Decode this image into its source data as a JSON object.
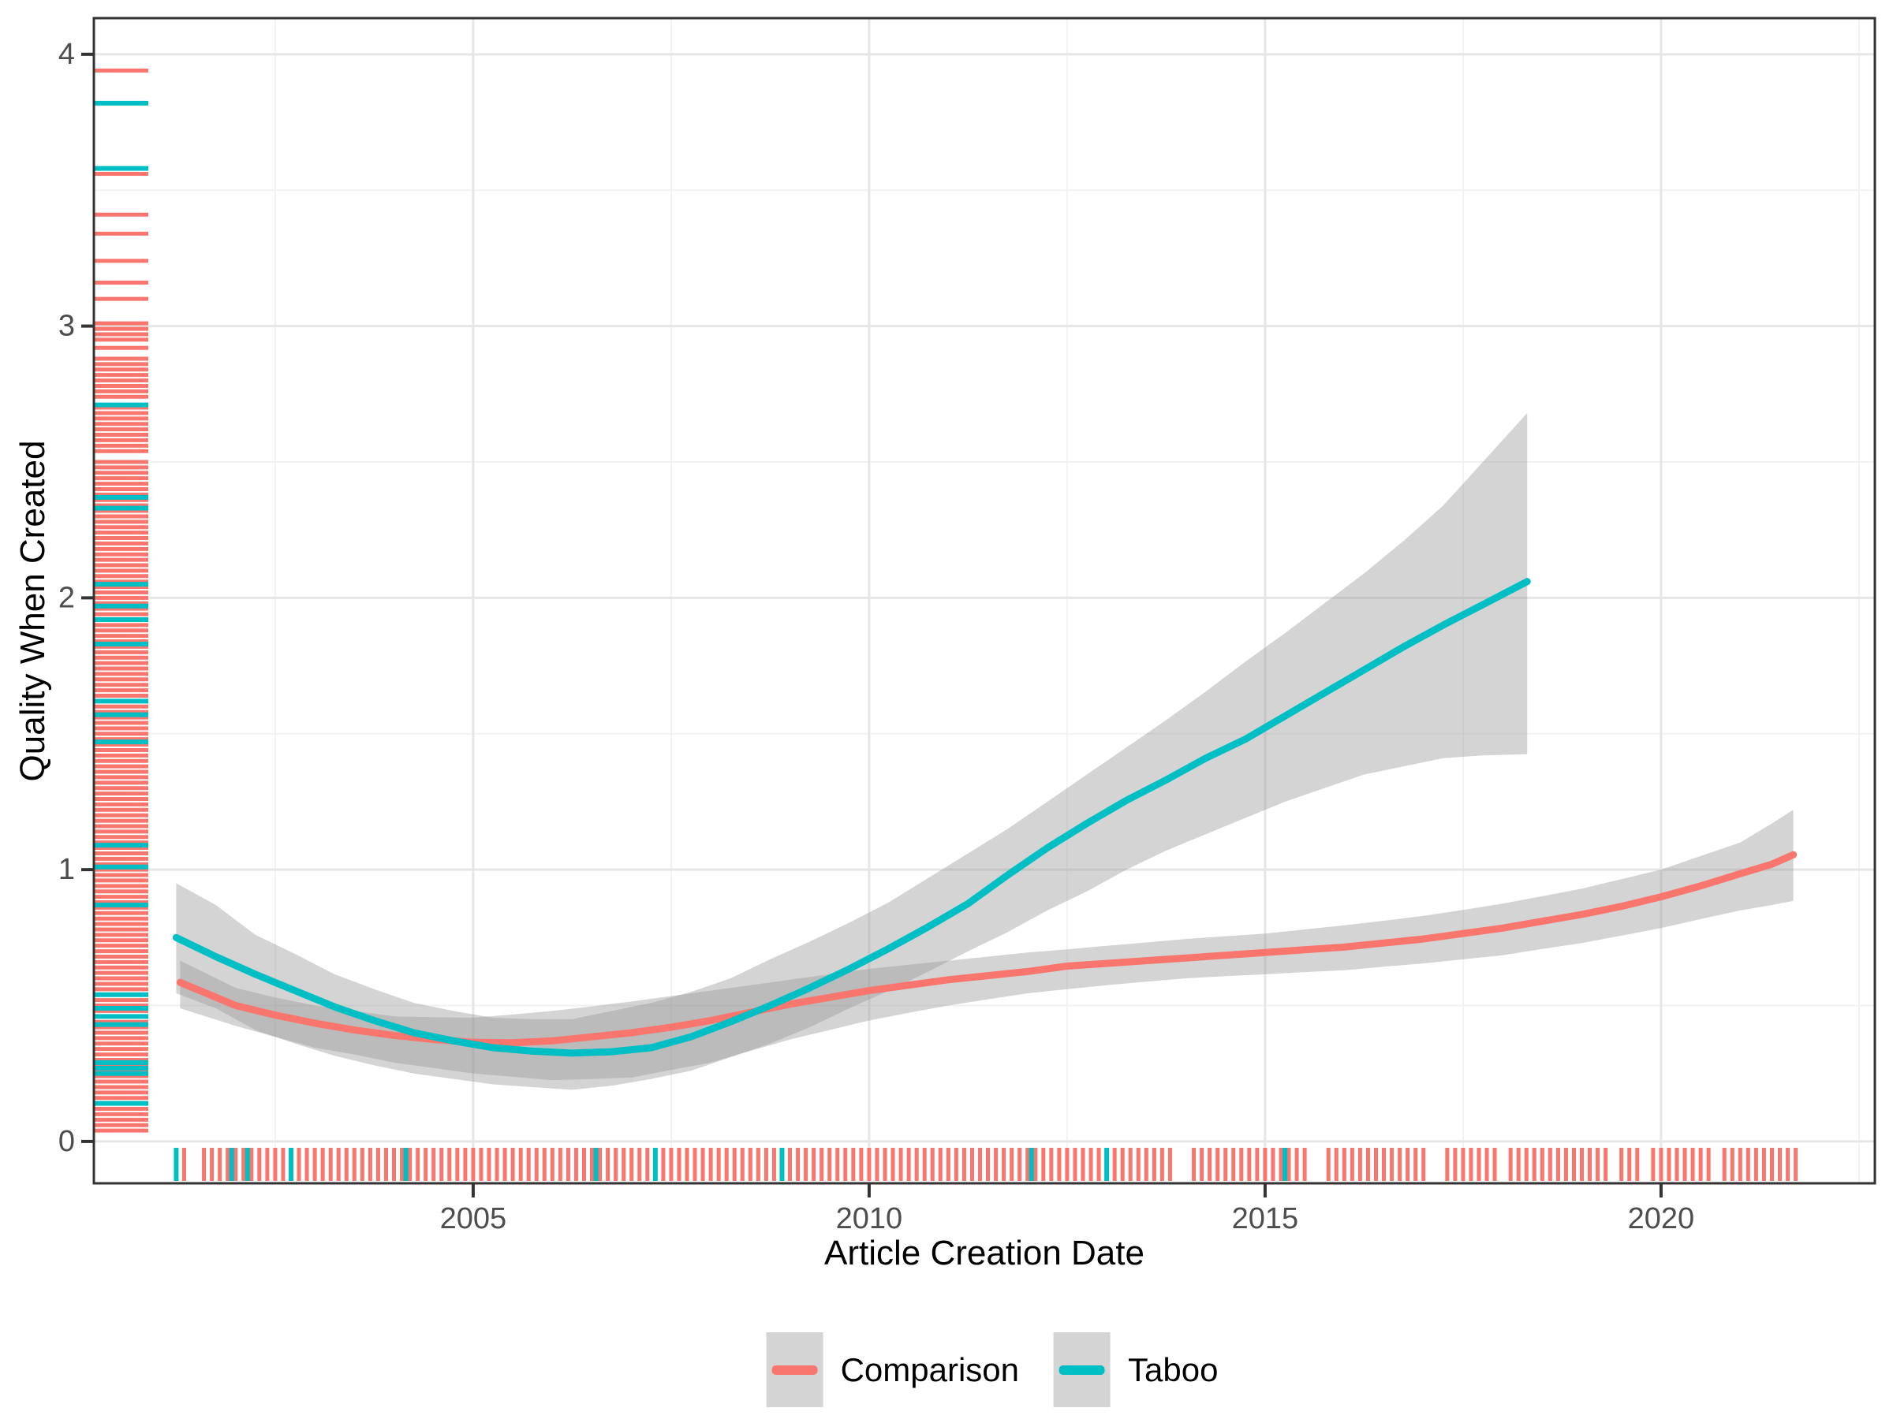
{
  "chart_data": {
    "type": "line",
    "title": "",
    "xlabel": "Article Creation Date",
    "ylabel": "Quality When Created",
    "x_range": [
      2000.21,
      2022.7
    ],
    "y_range": [
      -0.154,
      4.133
    ],
    "x_ticks": [
      2005,
      2010,
      2015,
      2020
    ],
    "x_minor_gridlines": [
      2002.5,
      2007.5,
      2012.5,
      2017.5,
      2022.5
    ],
    "y_ticks": [
      0,
      1,
      2,
      3,
      4
    ],
    "y_minor_gridlines": [
      0.5,
      1.5,
      2.5,
      3.5
    ],
    "grid": "major+minor",
    "legend_position": "bottom-center",
    "ribbon_color": "#999999",
    "ribbon_opacity": 0.42,
    "colors": {
      "comparison": "#F8766D",
      "taboo": "#00BFC4",
      "axis_text": "#4D4D4D",
      "axis_title": "#000000",
      "panel_border": "#333333",
      "grid_major": "#E6E6E6",
      "grid_minor": "#F2F2F2",
      "legend_key_bg": "#D4D4D4"
    },
    "series": [
      {
        "name": "Comparison",
        "color": "#F8766D",
        "x": [
          2001.3,
          2002,
          2002.5,
          2003,
          2003.5,
          2004,
          2004.5,
          2005,
          2005.5,
          2006,
          2006.5,
          2007,
          2007.5,
          2008,
          2008.5,
          2009,
          2009.5,
          2010,
          2010.5,
          2011,
          2011.5,
          2012,
          2012.5,
          2013,
          2013.5,
          2014,
          2014.5,
          2015,
          2015.5,
          2016,
          2016.5,
          2017,
          2017.5,
          2018,
          2018.5,
          2019,
          2019.5,
          2020,
          2020.5,
          2021,
          2021.4,
          2021.67
        ],
        "y": [
          0.585,
          0.5,
          0.465,
          0.435,
          0.41,
          0.39,
          0.375,
          0.365,
          0.363,
          0.37,
          0.385,
          0.4,
          0.42,
          0.445,
          0.475,
          0.505,
          0.53,
          0.555,
          0.575,
          0.595,
          0.61,
          0.625,
          0.645,
          0.655,
          0.665,
          0.675,
          0.685,
          0.695,
          0.705,
          0.715,
          0.73,
          0.745,
          0.765,
          0.785,
          0.81,
          0.835,
          0.865,
          0.9,
          0.94,
          0.985,
          1.02,
          1.055
        ],
        "ribbon_low": [
          0.49,
          0.425,
          0.385,
          0.345,
          0.32,
          0.29,
          0.27,
          0.25,
          0.238,
          0.225,
          0.23,
          0.235,
          0.263,
          0.29,
          0.333,
          0.375,
          0.41,
          0.445,
          0.473,
          0.5,
          0.523,
          0.545,
          0.56,
          0.575,
          0.588,
          0.6,
          0.608,
          0.615,
          0.623,
          0.63,
          0.643,
          0.655,
          0.67,
          0.685,
          0.708,
          0.73,
          0.757,
          0.785,
          0.818,
          0.85,
          0.87,
          0.885
        ],
        "ribbon_high": [
          0.665,
          0.565,
          0.53,
          0.5,
          0.48,
          0.46,
          0.457,
          0.455,
          0.467,
          0.48,
          0.497,
          0.515,
          0.535,
          0.555,
          0.575,
          0.595,
          0.615,
          0.635,
          0.65,
          0.665,
          0.68,
          0.695,
          0.707,
          0.72,
          0.732,
          0.745,
          0.755,
          0.765,
          0.78,
          0.795,
          0.812,
          0.83,
          0.852,
          0.875,
          0.902,
          0.93,
          0.965,
          1.0,
          1.05,
          1.1,
          1.17,
          1.22
        ],
        "rug_x": [
          2001.35,
          2001.6,
          2001.7,
          2001.8,
          2001.9,
          2002.0,
          2002.1,
          2002.2,
          2002.3,
          2002.4,
          2002.5,
          2002.6,
          2002.7,
          2002.8,
          2002.9,
          2003.0,
          2003.1,
          2003.2,
          2003.3,
          2003.4,
          2003.5,
          2003.6,
          2003.7,
          2003.8,
          2003.9,
          2004.0,
          2004.1,
          2004.2,
          2004.3,
          2004.4,
          2004.5,
          2004.6,
          2004.7,
          2004.8,
          2004.9,
          2005.0,
          2005.1,
          2005.2,
          2005.3,
          2005.4,
          2005.5,
          2005.6,
          2005.7,
          2005.8,
          2005.9,
          2006.0,
          2006.1,
          2006.2,
          2006.3,
          2006.4,
          2006.5,
          2006.6,
          2006.7,
          2006.8,
          2006.9,
          2007.0,
          2007.1,
          2007.2,
          2007.3,
          2007.4,
          2007.5,
          2007.6,
          2007.7,
          2007.8,
          2007.9,
          2008.0,
          2008.1,
          2008.2,
          2008.3,
          2008.4,
          2008.5,
          2008.6,
          2008.7,
          2008.8,
          2008.9,
          2009.0,
          2009.1,
          2009.2,
          2009.3,
          2009.4,
          2009.5,
          2009.6,
          2009.7,
          2009.8,
          2009.9,
          2010.0,
          2010.1,
          2010.2,
          2010.3,
          2010.4,
          2010.5,
          2010.6,
          2010.7,
          2010.8,
          2010.9,
          2011.0,
          2011.1,
          2011.2,
          2011.3,
          2011.4,
          2011.5,
          2011.6,
          2011.7,
          2011.8,
          2011.9,
          2012.0,
          2012.1,
          2012.2,
          2012.3,
          2012.4,
          2012.5,
          2012.6,
          2012.7,
          2012.8,
          2012.9,
          2013.0,
          2013.1,
          2013.2,
          2013.3,
          2013.4,
          2013.5,
          2013.6,
          2013.7,
          2013.8,
          2014.1,
          2014.2,
          2014.3,
          2014.4,
          2014.5,
          2014.6,
          2014.7,
          2014.8,
          2014.9,
          2015.0,
          2015.1,
          2015.2,
          2015.3,
          2015.4,
          2015.5,
          2015.8,
          2015.9,
          2016.0,
          2016.1,
          2016.2,
          2016.3,
          2016.4,
          2016.5,
          2016.6,
          2016.7,
          2016.8,
          2016.9,
          2017.0,
          2017.3,
          2017.4,
          2017.5,
          2017.6,
          2017.7,
          2017.8,
          2017.9,
          2018.1,
          2018.2,
          2018.3,
          2018.4,
          2018.5,
          2018.6,
          2018.7,
          2018.8,
          2018.9,
          2019.0,
          2019.1,
          2019.2,
          2019.3,
          2019.5,
          2019.6,
          2019.7,
          2019.9,
          2020.0,
          2020.1,
          2020.2,
          2020.3,
          2020.4,
          2020.5,
          2020.6,
          2020.8,
          2020.9,
          2021.0,
          2021.1,
          2021.2,
          2021.3,
          2021.4,
          2021.5,
          2021.6,
          2021.7
        ],
        "rug_y": [
          3.94,
          3.56,
          3.41,
          3.34,
          3.24,
          3.16,
          3.1,
          3.01,
          2.99,
          2.97,
          2.95,
          2.92,
          2.88,
          2.86,
          2.84,
          2.82,
          2.8,
          2.78,
          2.76,
          2.74,
          2.7,
          2.68,
          2.66,
          2.64,
          2.62,
          2.6,
          2.58,
          2.56,
          2.54,
          2.5,
          2.48,
          2.46,
          2.44,
          2.42,
          2.4,
          2.38,
          2.36,
          2.34,
          2.32,
          2.3,
          2.28,
          2.26,
          2.24,
          2.22,
          2.2,
          2.18,
          2.16,
          2.14,
          2.12,
          2.1,
          2.08,
          2.06,
          2.04,
          2.02,
          2.0,
          1.98,
          1.96,
          1.94,
          1.92,
          1.9,
          1.88,
          1.86,
          1.84,
          1.82,
          1.8,
          1.78,
          1.76,
          1.74,
          1.72,
          1.7,
          1.68,
          1.66,
          1.64,
          1.62,
          1.6,
          1.58,
          1.56,
          1.54,
          1.52,
          1.5,
          1.48,
          1.46,
          1.44,
          1.42,
          1.4,
          1.38,
          1.36,
          1.34,
          1.32,
          1.3,
          1.28,
          1.26,
          1.24,
          1.22,
          1.2,
          1.18,
          1.16,
          1.14,
          1.12,
          1.1,
          1.08,
          1.06,
          1.04,
          1.02,
          1.0,
          0.98,
          0.96,
          0.94,
          0.92,
          0.9,
          0.88,
          0.86,
          0.84,
          0.82,
          0.8,
          0.78,
          0.76,
          0.74,
          0.72,
          0.7,
          0.68,
          0.66,
          0.64,
          0.62,
          0.6,
          0.58,
          0.56,
          0.54,
          0.52,
          0.5,
          0.48,
          0.46,
          0.44,
          0.42,
          0.4,
          0.38,
          0.36,
          0.34,
          0.32,
          0.3,
          0.28,
          0.26,
          0.24,
          0.22,
          0.2,
          0.18,
          0.16,
          0.14,
          0.12,
          0.1,
          0.08,
          0.06,
          0.04
        ]
      },
      {
        "name": "Taboo",
        "color": "#00BFC4",
        "x": [
          2001.25,
          2001.75,
          2002.25,
          2002.75,
          2003.25,
          2003.75,
          2004.25,
          2004.75,
          2005.25,
          2005.75,
          2006.25,
          2006.75,
          2007.25,
          2007.75,
          2008.25,
          2008.75,
          2009.25,
          2009.75,
          2010.25,
          2010.75,
          2011.25,
          2011.75,
          2012.25,
          2012.75,
          2013.25,
          2013.75,
          2014.25,
          2014.75,
          2015.25,
          2015.75,
          2016.25,
          2016.75,
          2017.25,
          2017.75,
          2018.31
        ],
        "y": [
          0.75,
          0.68,
          0.615,
          0.555,
          0.495,
          0.445,
          0.4,
          0.37,
          0.345,
          0.332,
          0.325,
          0.33,
          0.345,
          0.385,
          0.44,
          0.5,
          0.565,
          0.635,
          0.71,
          0.79,
          0.875,
          0.98,
          1.08,
          1.17,
          1.255,
          1.33,
          1.41,
          1.48,
          1.565,
          1.65,
          1.735,
          1.82,
          1.9,
          1.975,
          2.06
        ],
        "ribbon_low": [
          0.545,
          0.49,
          0.41,
          0.36,
          0.315,
          0.28,
          0.25,
          0.23,
          0.21,
          0.2,
          0.19,
          0.205,
          0.23,
          0.26,
          0.31,
          0.36,
          0.42,
          0.49,
          0.555,
          0.625,
          0.7,
          0.77,
          0.85,
          0.92,
          1.0,
          1.07,
          1.13,
          1.19,
          1.25,
          1.3,
          1.35,
          1.38,
          1.41,
          1.42,
          1.425
        ],
        "ribbon_high": [
          0.95,
          0.87,
          0.76,
          0.69,
          0.615,
          0.56,
          0.51,
          0.48,
          0.455,
          0.45,
          0.45,
          0.48,
          0.51,
          0.55,
          0.6,
          0.67,
          0.735,
          0.805,
          0.88,
          0.97,
          1.06,
          1.15,
          1.25,
          1.35,
          1.45,
          1.55,
          1.655,
          1.765,
          1.87,
          1.98,
          2.09,
          2.21,
          2.34,
          2.5,
          2.68
        ],
        "rug_x": [
          2001.25,
          2001.95,
          2002.15,
          2002.7,
          2004.15,
          2006.55,
          2007.3,
          2008.9,
          2012.05,
          2013.0,
          2015.25
        ],
        "rug_y": [
          3.82,
          3.58,
          2.71,
          2.37,
          2.33,
          2.05,
          1.97,
          1.92,
          1.83,
          1.62,
          1.57,
          1.47,
          1.09,
          1.01,
          0.87,
          0.54,
          0.49,
          0.46,
          0.43,
          0.29,
          0.27,
          0.25,
          0.14
        ]
      }
    ]
  },
  "legend": {
    "items": [
      {
        "label": "Comparison",
        "color": "#F8766D"
      },
      {
        "label": "Taboo",
        "color": "#00BFC4"
      }
    ]
  }
}
